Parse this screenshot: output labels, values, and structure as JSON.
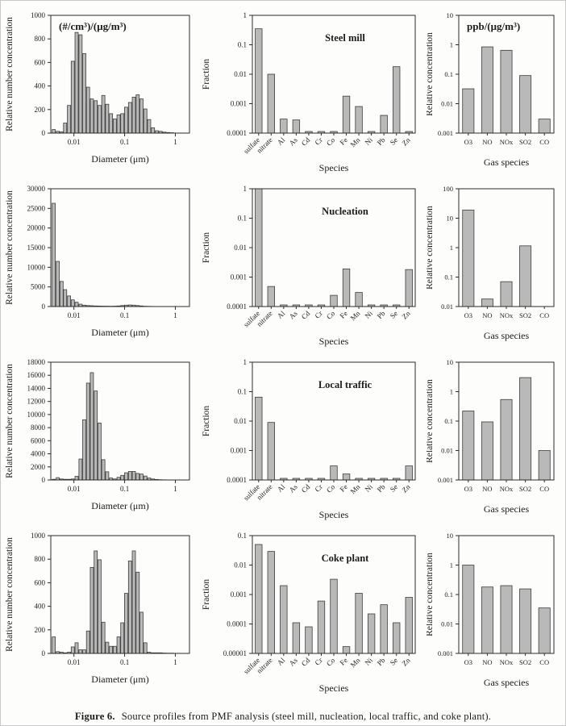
{
  "figure": {
    "caption_label": "Figure 6.",
    "caption_text": "Source profiles from PMF analysis (steel mill, nucleation, local traffic, and coke plant)."
  },
  "colors": {
    "bar_fill": "#b9b9b9",
    "bar_stroke": "#3d3d3d",
    "axis": "#2b2b2b",
    "text": "#1c1c1c",
    "background": "#fdfdfb"
  },
  "sources": [
    "Steel mill",
    "Nucleation",
    "Local traffic",
    "Coke plant"
  ],
  "diameters": [
    0.004,
    0.0048,
    0.0057,
    0.0067,
    0.008,
    0.0095,
    0.0113,
    0.0135,
    0.016,
    0.019,
    0.0226,
    0.0269,
    0.032,
    0.038,
    0.0452,
    0.0538,
    0.064,
    0.076,
    0.09,
    0.107,
    0.128,
    0.152,
    0.181,
    0.215,
    0.256,
    0.304,
    0.362,
    0.43,
    0.511,
    0.608,
    0.723,
    0.86
  ],
  "chart_data": [
    {
      "type": "bar",
      "name": "steel-mill-size-distribution",
      "title": "(#/cm³)/(μg/m³)",
      "title_pos": "tl",
      "xscale": "log",
      "xlim": [
        0.0035,
        1.9
      ],
      "xticks": [
        0.01,
        0.1,
        1
      ],
      "yscale": "linear",
      "ylim": [
        0,
        1000
      ],
      "ystep": 200,
      "xlabel": "Diameter (μm)",
      "ylabel": "Relative number concentration",
      "values": [
        30,
        15,
        10,
        85,
        235,
        610,
        855,
        835,
        675,
        390,
        290,
        275,
        235,
        320,
        245,
        165,
        120,
        155,
        165,
        220,
        260,
        305,
        325,
        290,
        205,
        115,
        45,
        20,
        15,
        8,
        5,
        3
      ]
    },
    {
      "type": "bar",
      "name": "steel-mill-species-fractions",
      "title": "Steel mill",
      "title_pos": "c",
      "xscale": "category",
      "rotate_x": true,
      "stub_zero": true,
      "categories": [
        "sulfate",
        "nitrate",
        "Al",
        "As",
        "Cd",
        "Cr",
        "Co",
        "Fe",
        "Mn",
        "Ni",
        "Pb",
        "Se",
        "Zn"
      ],
      "yscale": "log",
      "ylim": [
        0.0001,
        1
      ],
      "xlabel": "Species",
      "ylabel": "Fraction",
      "values": [
        0.35,
        0.01,
        0.0003,
        0.00028,
        0,
        0,
        0,
        0.0018,
        0.0008,
        0,
        0.0004,
        0.018,
        0
      ]
    },
    {
      "type": "bar",
      "name": "steel-mill-gas-concentrations",
      "title": "ppb/(μg/m³)",
      "title_pos": "tl",
      "xscale": "category",
      "rotate_x": false,
      "stub_zero": false,
      "categories": [
        "O3",
        "NO",
        "NOx",
        "SO2",
        "CO"
      ],
      "yscale": "log",
      "ylim": [
        0.001,
        10
      ],
      "xlabel": "Gas species",
      "ylabel": "Relative concentration",
      "values": [
        0.032,
        0.85,
        0.65,
        0.09,
        0.003
      ]
    },
    {
      "type": "bar",
      "name": "nucleation-size-distribution",
      "title": "",
      "title_pos": "tl",
      "xscale": "log",
      "xlim": [
        0.0035,
        1.9
      ],
      "xticks": [
        0.01,
        0.1,
        1
      ],
      "yscale": "linear",
      "ylim": [
        0,
        30000
      ],
      "ystep": 5000,
      "xlabel": "Diameter (μm)",
      "ylabel": "Relative number concentration",
      "values": [
        26300,
        11500,
        6400,
        4300,
        2700,
        1700,
        1100,
        600,
        350,
        250,
        200,
        150,
        120,
        100,
        90,
        80,
        100,
        150,
        250,
        350,
        400,
        350,
        250,
        150,
        80,
        50,
        30,
        20,
        10,
        5,
        3,
        2
      ]
    },
    {
      "type": "bar",
      "name": "nucleation-species-fractions",
      "title": "Nucleation",
      "title_pos": "c",
      "xscale": "category",
      "rotate_x": true,
      "stub_zero": true,
      "categories": [
        "sulfate",
        "nitrate",
        "Al",
        "As",
        "Cd",
        "Cr",
        "Co",
        "Fe",
        "Mn",
        "Ni",
        "Pb",
        "Se",
        "Zn"
      ],
      "yscale": "log",
      "ylim": [
        0.0001,
        1
      ],
      "xlabel": "Species",
      "ylabel": "Fraction",
      "values": [
        1,
        0.00048,
        0,
        0,
        0,
        0,
        0.00024,
        0.0019,
        0.0003,
        0,
        0,
        0,
        0.0018
      ]
    },
    {
      "type": "bar",
      "name": "nucleation-gas-concentrations",
      "title": "",
      "title_pos": "tl",
      "xscale": "category",
      "rotate_x": false,
      "stub_zero": false,
      "categories": [
        "O3",
        "NO",
        "NOx",
        "SO2",
        "CO"
      ],
      "yscale": "log",
      "ylim": [
        0.01,
        100
      ],
      "xlabel": "Gas species",
      "ylabel": "Relative concentration",
      "values": [
        19,
        0.018,
        0.07,
        1.15,
        0
      ]
    },
    {
      "type": "bar",
      "name": "local-traffic-size-distribution",
      "title": "",
      "title_pos": "tl",
      "xscale": "log",
      "xlim": [
        0.0035,
        1.9
      ],
      "xticks": [
        0.01,
        0.1,
        1
      ],
      "yscale": "linear",
      "ylim": [
        0,
        18000
      ],
      "ystep": 2000,
      "xlabel": "Diameter (μm)",
      "ylabel": "Relative number concentration",
      "values": [
        100,
        350,
        150,
        100,
        100,
        150,
        550,
        3200,
        9200,
        14800,
        16400,
        13600,
        8700,
        3100,
        1250,
        300,
        150,
        400,
        700,
        1100,
        1300,
        1300,
        1000,
        900,
        600,
        300,
        150,
        80,
        40,
        20,
        10,
        5
      ]
    },
    {
      "type": "bar",
      "name": "local-traffic-species-fractions",
      "title": "Local traffic",
      "title_pos": "c",
      "xscale": "category",
      "rotate_x": true,
      "stub_zero": true,
      "categories": [
        "sulfate",
        "nitrate",
        "Al",
        "As",
        "Cd",
        "Cr",
        "Co",
        "Fe",
        "Mn",
        "Ni",
        "Pb",
        "Se",
        "Zn"
      ],
      "yscale": "log",
      "ylim": [
        0.0001,
        1
      ],
      "xlabel": "Species",
      "ylabel": "Fraction",
      "values": [
        0.065,
        0.009,
        0,
        0,
        0,
        0,
        0.0003,
        0.00016,
        0,
        0,
        0,
        0,
        0.0003
      ]
    },
    {
      "type": "bar",
      "name": "local-traffic-gas-concentrations",
      "title": "",
      "title_pos": "tl",
      "xscale": "category",
      "rotate_x": false,
      "stub_zero": false,
      "categories": [
        "O3",
        "NO",
        "NOx",
        "SO2",
        "CO"
      ],
      "yscale": "log",
      "ylim": [
        0.001,
        10
      ],
      "xlabel": "Gas species",
      "ylabel": "Relative concentration",
      "values": [
        0.22,
        0.094,
        0.54,
        3,
        0.01
      ]
    },
    {
      "type": "bar",
      "name": "coke-plant-size-distribution",
      "title": "",
      "title_pos": "tl",
      "xscale": "log",
      "xlim": [
        0.0035,
        1.9
      ],
      "xticks": [
        0.01,
        0.1,
        1
      ],
      "yscale": "linear",
      "ylim": [
        0,
        1000
      ],
      "ystep": 200,
      "xlabel": "Diameter (μm)",
      "ylabel": "Relative number concentration",
      "values": [
        140,
        15,
        10,
        5,
        10,
        55,
        90,
        30,
        30,
        190,
        730,
        870,
        795,
        265,
        95,
        60,
        60,
        140,
        260,
        510,
        785,
        870,
        690,
        350,
        90,
        10,
        5,
        5,
        5,
        3,
        2,
        2
      ]
    },
    {
      "type": "bar",
      "name": "coke-plant-species-fractions",
      "title": "Coke plant",
      "title_pos": "c",
      "xscale": "category",
      "rotate_x": true,
      "stub_zero": true,
      "categories": [
        "sulfate",
        "nitrate",
        "Al",
        "As",
        "Cd",
        "Cr",
        "Co",
        "Fe",
        "Mn",
        "Ni",
        "Pb",
        "Se",
        "Zn"
      ],
      "yscale": "log",
      "ylim": [
        1e-05,
        0.1
      ],
      "xlabel": "Species",
      "ylabel": "Fraction",
      "values": [
        0.05,
        0.029,
        0.002,
        0.00011,
        8e-05,
        0.0006,
        0.0033,
        1.7e-05,
        0.0011,
        0.00022,
        0.00045,
        0.00011,
        0.0008
      ]
    },
    {
      "type": "bar",
      "name": "coke-plant-gas-concentrations",
      "title": "",
      "title_pos": "tl",
      "xscale": "category",
      "rotate_x": false,
      "stub_zero": false,
      "categories": [
        "O3",
        "NO",
        "NOx",
        "SO2",
        "CO"
      ],
      "yscale": "log",
      "ylim": [
        0.001,
        10
      ],
      "xlabel": "Gas species",
      "ylabel": "Relative concentration",
      "values": [
        1.0,
        0.18,
        0.2,
        0.155,
        0.035
      ]
    }
  ]
}
